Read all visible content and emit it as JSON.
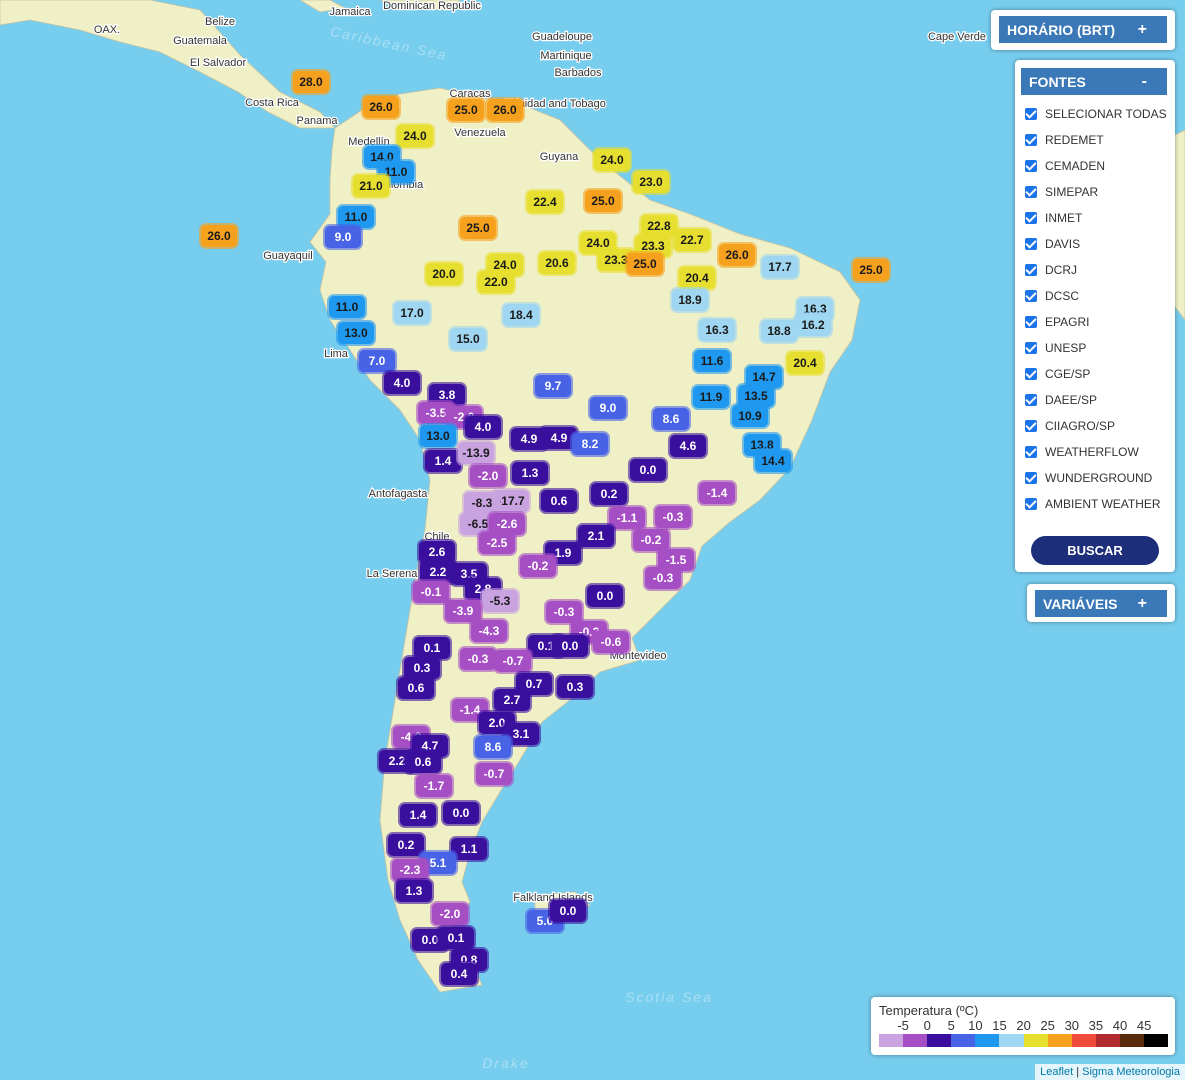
{
  "places": [
    "OAX.",
    "Belize",
    "Jamaica",
    "Dominican Republic",
    "Guatemala",
    "El Salvador",
    "Costa Rica",
    "Panama",
    "Guadeloupe",
    "Martinique",
    "Barbados",
    "Trinidad and Tobago",
    "Caracas",
    "Venezuela",
    "Medellín",
    "Guyana",
    "Colombia",
    "Guayaquil",
    "Lima",
    "Antofagasta",
    "Chile",
    "La Serena",
    "Montevideo",
    "Falkland Islands",
    "Cape Verde"
  ],
  "seas": [
    "Caribbean Sea",
    "Scotia Sea",
    "Drake"
  ],
  "stations": [
    "28.0",
    "26.0",
    "25.0",
    "26.0",
    "24.0",
    "14.0",
    "11.0",
    "21.0",
    "22.4",
    "25.0",
    "24.0",
    "23.0",
    "26.0",
    "25.0",
    "11.0",
    "9.0",
    "22.8",
    "23.3",
    "22.7",
    "24.0",
    "20.6",
    "23.3",
    "25.0",
    "20.4",
    "26.0",
    "17.7",
    "25.0",
    "20.0",
    "24.0",
    "22.0",
    "18.9",
    "17.0",
    "18.4",
    "11.0",
    "13.0",
    "15.0",
    "16.3",
    "16.3",
    "16.2",
    "18.8",
    "7.0",
    "11.6",
    "14.7",
    "20.4",
    "4.0",
    "3.8",
    "9.7",
    "13.5",
    "11.9",
    "10.9",
    "-3.5",
    "-2.0",
    "9.0",
    "8.6",
    "13.0",
    "4.0",
    "4.9",
    "4.9",
    "8.2",
    "4.6",
    "13.8",
    "14.4",
    "1.4",
    "-13.9",
    "0.0",
    "-2.0",
    "1.3",
    "-17.7",
    "-8.3",
    "0.6",
    "0.2",
    "-1.4",
    "-6.5",
    "-2.6",
    "-1.1",
    "-0.3",
    "2.1",
    "-0.2",
    "-2.5",
    "1.9",
    "2.6",
    "-1.5",
    "-0.2",
    "2.2",
    "3.5",
    "-0.3",
    "-0.1",
    "2.8",
    "-5.3",
    "0.0",
    "-3.9",
    "-0.3",
    "-4.3",
    "-0.2",
    "-0.6",
    "0.1",
    "0.1",
    "0.0",
    "-0.3",
    "-0.7",
    "0.3",
    "0.6",
    "0.7",
    "0.3",
    "2.7",
    "-1.4",
    "2.0",
    "3.1",
    "-4.8",
    "4.7",
    "8.6",
    "2.2",
    "0.6",
    "-0.7",
    "-1.7",
    "1.4",
    "0.0",
    "0.2",
    "1.1",
    "5.1",
    "-2.3",
    "1.3",
    "-2.0",
    "5.0",
    "0.0",
    "0.0",
    "0.1",
    "0.8",
    "0.4"
  ],
  "controls": {
    "horario": {
      "title": "HORÁRIO (BRT)",
      "toggle": "+"
    },
    "fontes": {
      "title": "FONTES",
      "toggle": "-",
      "sources": [
        "SELECIONAR TODAS",
        "REDEMET",
        "CEMADEN",
        "SIMEPAR",
        "INMET",
        "DAVIS",
        "DCRJ",
        "DCSC",
        "EPAGRI",
        "UNESP",
        "CGE/SP",
        "DAEE/SP",
        "CIIAGRO/SP",
        "WEATHERFLOW",
        "WUNDERGROUND",
        "AMBIENT WEATHER"
      ],
      "button": "BUSCAR"
    },
    "variaveis": {
      "title": "VARIÁVEIS",
      "toggle": "+"
    }
  },
  "legend": {
    "title": "Temperatura (ºC)",
    "ticks": [
      -5,
      0,
      5,
      10,
      15,
      20,
      25,
      30,
      35,
      40,
      45
    ],
    "colors": [
      "#c9a3e0",
      "#a64fc4",
      "#3b0f9e",
      "#4863e6",
      "#1f99f0",
      "#9fd6f1",
      "#e7df2f",
      "#f6a11e",
      "#f04a3a",
      "#b02a2e",
      "#5a2a0c",
      "#000000"
    ]
  },
  "attribution": {
    "leaflet": "Leaflet",
    "separator": "|",
    "source": "Sigma Meteorologia"
  }
}
